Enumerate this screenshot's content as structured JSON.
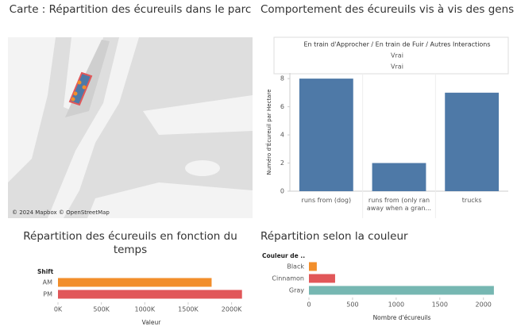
{
  "chart_data": [
    {
      "type": "map",
      "title": "Carte : Répartition des écureuils dans le parc",
      "attribution": "© 2024 Mapbox © OpenStreetMap"
    },
    {
      "type": "bar",
      "title": "Comportement des écureuils vis à vis des gens",
      "header": [
        "En train d'Approcher / En train de Fuir / Autres Interactions",
        "Vrai",
        "Vrai"
      ],
      "ylabel": "Numéro d'Écureuil par Hectare",
      "categories": [
        "runs from (dog)",
        "runs from (only ran away when a gran...",
        "trucks"
      ],
      "values": [
        8,
        2,
        7
      ],
      "color": "#4e79a7",
      "ylim": [
        0,
        8.4
      ],
      "yticks": [
        0,
        2,
        4,
        6,
        8
      ]
    },
    {
      "type": "barh",
      "title": "Répartition des écureuils en fonction du temps",
      "cat_header": "Shift",
      "categories": [
        "AM",
        "PM"
      ],
      "values": [
        1770000,
        2120000
      ],
      "colors": [
        "#f28e2b",
        "#e15759"
      ],
      "xlabel": "Valeur",
      "xlim": [
        0,
        2150000
      ],
      "xticks": [
        {
          "value": 0,
          "label": "0K"
        },
        {
          "value": 500000,
          "label": "500K"
        },
        {
          "value": 1000000,
          "label": "1000K"
        },
        {
          "value": 1500000,
          "label": "1500K"
        },
        {
          "value": 2000000,
          "label": "2000K"
        }
      ]
    },
    {
      "type": "barh",
      "title": "Répartition selon la couleur",
      "cat_header": "Couleur de ..",
      "categories": [
        "Black",
        "Cinnamon",
        "Gray"
      ],
      "values": [
        90,
        300,
        2120
      ],
      "colors": [
        "#f28e2b",
        "#e15759",
        "#76b7b2"
      ],
      "xlabel": "Nombre d'écureuils",
      "xlim": [
        0,
        2130
      ],
      "xticks": [
        0,
        500,
        1000,
        1500,
        2000
      ]
    }
  ]
}
